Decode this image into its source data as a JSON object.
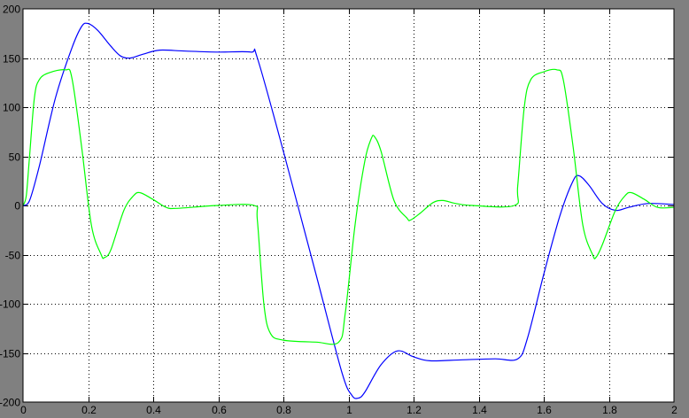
{
  "chart_data": {
    "type": "line",
    "title": "",
    "xlabel": "",
    "ylabel": "",
    "xlim": [
      0,
      2
    ],
    "ylim": [
      -200,
      200
    ],
    "grid": true,
    "x_ticks": [
      "0",
      "0.2",
      "0.4",
      "0.6",
      "0.8",
      "1",
      "1.2",
      "1.4",
      "1.6",
      "1.8",
      "2"
    ],
    "x_tick_values": [
      0,
      0.2,
      0.4,
      0.6,
      0.8,
      1,
      1.2,
      1.4,
      1.6,
      1.8,
      2
    ],
    "y_ticks": [
      "200",
      "150",
      "100",
      "50",
      "0",
      "-50",
      "-100",
      "-150",
      "-200"
    ],
    "y_tick_values": [
      200,
      150,
      100,
      50,
      0,
      -50,
      -100,
      -150,
      -200
    ],
    "background": "#808080",
    "plot_background": "#ffffff",
    "series": [
      {
        "color": "#0000ff",
        "points": [
          [
            0,
            0
          ],
          [
            0.02,
            5
          ],
          [
            0.05,
            40
          ],
          [
            0.1,
            110
          ],
          [
            0.15,
            160
          ],
          [
            0.18,
            182
          ],
          [
            0.2,
            185
          ],
          [
            0.23,
            178
          ],
          [
            0.27,
            162
          ],
          [
            0.3,
            152
          ],
          [
            0.33,
            150
          ],
          [
            0.37,
            154
          ],
          [
            0.42,
            158
          ],
          [
            0.5,
            157
          ],
          [
            0.6,
            156
          ],
          [
            0.7,
            156
          ],
          [
            0.72,
            150
          ],
          [
            0.8,
            55
          ],
          [
            0.9,
            -70
          ],
          [
            0.98,
            -170
          ],
          [
            1.01,
            -193
          ],
          [
            1.03,
            -196
          ],
          [
            1.05,
            -190
          ],
          [
            1.1,
            -162
          ],
          [
            1.15,
            -148
          ],
          [
            1.2,
            -154
          ],
          [
            1.25,
            -158
          ],
          [
            1.35,
            -157
          ],
          [
            1.45,
            -156
          ],
          [
            1.52,
            -156
          ],
          [
            1.55,
            -135
          ],
          [
            1.6,
            -70
          ],
          [
            1.65,
            -10
          ],
          [
            1.69,
            25
          ],
          [
            1.71,
            30
          ],
          [
            1.74,
            20
          ],
          [
            1.78,
            2
          ],
          [
            1.82,
            -5
          ],
          [
            1.86,
            -2
          ],
          [
            1.92,
            2
          ],
          [
            2,
            1
          ]
        ]
      },
      {
        "color": "#00ff00",
        "points": [
          [
            0,
            0
          ],
          [
            0.01,
            10
          ],
          [
            0.02,
            50
          ],
          [
            0.035,
            110
          ],
          [
            0.05,
            128
          ],
          [
            0.08,
            135
          ],
          [
            0.13,
            138
          ],
          [
            0.15,
            130
          ],
          [
            0.18,
            60
          ],
          [
            0.21,
            -20
          ],
          [
            0.24,
            -50
          ],
          [
            0.25,
            -53
          ],
          [
            0.27,
            -45
          ],
          [
            0.31,
            -5
          ],
          [
            0.34,
            10
          ],
          [
            0.36,
            13
          ],
          [
            0.4,
            6
          ],
          [
            0.44,
            -2
          ],
          [
            0.47,
            -3
          ],
          [
            0.55,
            -1
          ],
          [
            0.6,
            0
          ],
          [
            0.71,
            0
          ],
          [
            0.72,
            -15
          ],
          [
            0.74,
            -100
          ],
          [
            0.76,
            -130
          ],
          [
            0.8,
            -137
          ],
          [
            0.9,
            -139
          ],
          [
            0.97,
            -139
          ],
          [
            0.99,
            -110
          ],
          [
            1.02,
            -20
          ],
          [
            1.05,
            45
          ],
          [
            1.07,
            68
          ],
          [
            1.08,
            70
          ],
          [
            1.1,
            55
          ],
          [
            1.14,
            5
          ],
          [
            1.18,
            -13
          ],
          [
            1.19,
            -15
          ],
          [
            1.22,
            -8
          ],
          [
            1.26,
            3
          ],
          [
            1.29,
            5
          ],
          [
            1.33,
            2
          ],
          [
            1.38,
            0
          ],
          [
            1.51,
            0
          ],
          [
            1.52,
            20
          ],
          [
            1.54,
            100
          ],
          [
            1.56,
            128
          ],
          [
            1.6,
            136
          ],
          [
            1.64,
            138
          ],
          [
            1.66,
            128
          ],
          [
            1.69,
            60
          ],
          [
            1.72,
            -20
          ],
          [
            1.75,
            -50
          ],
          [
            1.76,
            -53
          ],
          [
            1.78,
            -40
          ],
          [
            1.82,
            -5
          ],
          [
            1.85,
            10
          ],
          [
            1.87,
            13
          ],
          [
            1.91,
            6
          ],
          [
            1.95,
            -2
          ],
          [
            2,
            -2
          ]
        ]
      }
    ]
  }
}
